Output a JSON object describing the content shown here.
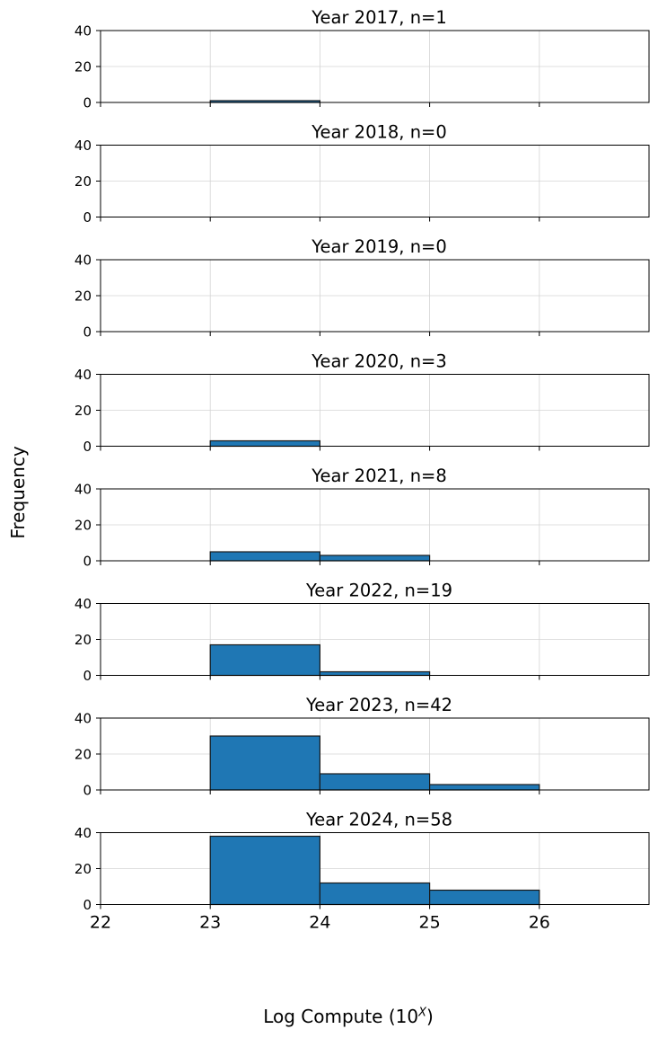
{
  "chart_data": {
    "type": "bar",
    "subtype": "stacked-histogram-panels",
    "ylabel": "Frequency",
    "xlabel_main": "Log Compute (10",
    "xlabel_sup": "X",
    "xlabel_end": ")",
    "bin_edges": [
      22,
      23,
      24,
      25,
      26,
      27
    ],
    "xticks": [
      22,
      23,
      24,
      25,
      26
    ],
    "xlim": [
      22,
      27
    ],
    "ylim": [
      0,
      40
    ],
    "yticks": [
      0,
      20,
      40
    ],
    "grid": true,
    "bar_color": "#1f77b4",
    "panels": [
      {
        "title": "Year 2017, n=1",
        "counts": [
          0,
          1,
          0,
          0,
          0
        ]
      },
      {
        "title": "Year 2018, n=0",
        "counts": [
          0,
          0,
          0,
          0,
          0
        ]
      },
      {
        "title": "Year 2019, n=0",
        "counts": [
          0,
          0,
          0,
          0,
          0
        ]
      },
      {
        "title": "Year 2020, n=3",
        "counts": [
          0,
          3,
          0,
          0,
          0
        ]
      },
      {
        "title": "Year 2021, n=8",
        "counts": [
          0,
          5,
          3,
          0,
          0
        ]
      },
      {
        "title": "Year 2022, n=19",
        "counts": [
          0,
          17,
          2,
          0,
          0
        ]
      },
      {
        "title": "Year 2023, n=42",
        "counts": [
          0,
          30,
          9,
          3,
          0
        ]
      },
      {
        "title": "Year 2024, n=58",
        "counts": [
          0,
          38,
          12,
          8,
          0
        ]
      }
    ]
  }
}
